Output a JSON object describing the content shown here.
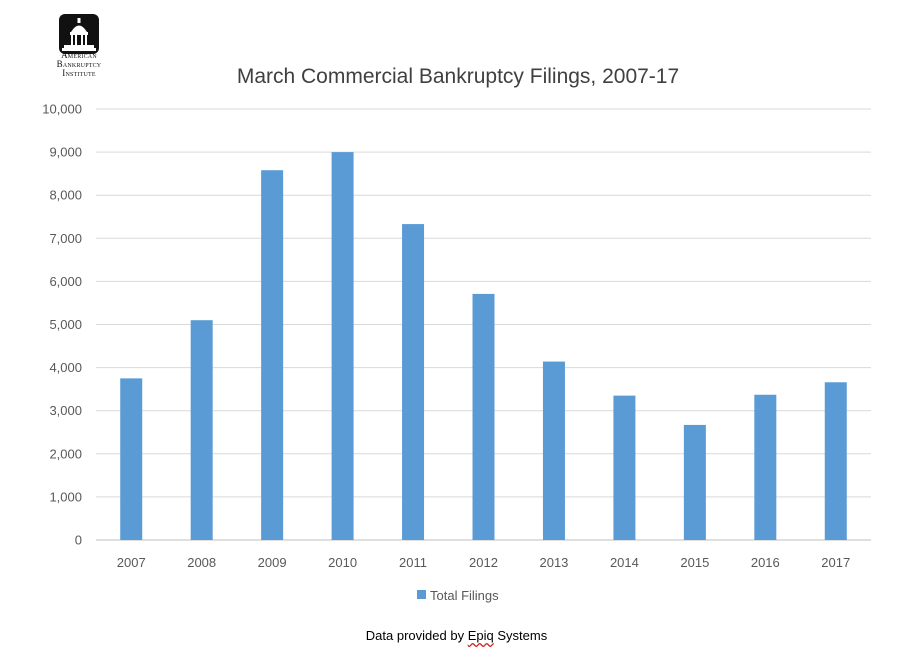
{
  "logo": {
    "icon": "capitol-dome-icon",
    "lines": [
      "American",
      "Bankruptcy",
      "Institute"
    ]
  },
  "colors": {
    "bar": "#5b9bd5",
    "grid": "#d9d9d9",
    "text": "#595959",
    "title": "#404040"
  },
  "chart_data": {
    "type": "bar",
    "title": "March Commercial Bankruptcy Filings, 2007-17",
    "xlabel": "",
    "ylabel": "",
    "categories": [
      "2007",
      "2008",
      "2009",
      "2010",
      "2011",
      "2012",
      "2013",
      "2014",
      "2015",
      "2016",
      "2017"
    ],
    "series": [
      {
        "name": "Total Filings",
        "values": [
          3750,
          5100,
          8580,
          9000,
          7330,
          5710,
          4140,
          3350,
          2670,
          3370,
          3660
        ]
      }
    ],
    "ylim": [
      0,
      10000
    ],
    "yticks": [
      0,
      1000,
      2000,
      3000,
      4000,
      5000,
      6000,
      7000,
      8000,
      9000,
      10000
    ],
    "ytick_labels": [
      "0",
      "1,000",
      "2,000",
      "3,000",
      "4,000",
      "5,000",
      "6,000",
      "7,000",
      "8,000",
      "9,000",
      "10,000"
    ],
    "grid": true,
    "legend_position": "bottom"
  },
  "source": {
    "prefix": "Data provided by ",
    "highlight": "Epiq",
    "suffix": " Systems"
  }
}
